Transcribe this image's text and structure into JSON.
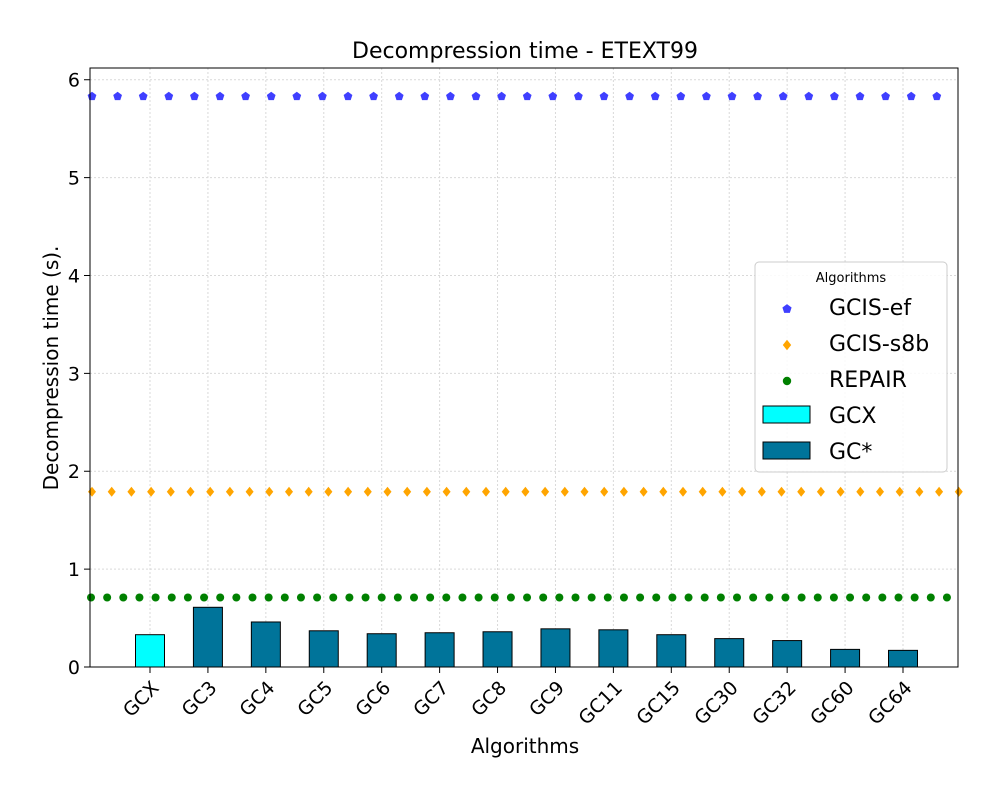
{
  "chart_data": {
    "type": "bar",
    "title": "Decompression time -  ETEXT99",
    "xlabel": "Algorithms",
    "ylabel": "Decompression time (s).",
    "ylim": [
      0,
      6.12
    ],
    "yticks": [
      0,
      1,
      2,
      3,
      4,
      5,
      6
    ],
    "grid": true,
    "categories": [
      "GCX",
      "GC3",
      "GC4",
      "GC5",
      "GC6",
      "GC7",
      "GC8",
      "GC9",
      "GC11",
      "GC15",
      "GC30",
      "GC32",
      "GC60",
      "GC64"
    ],
    "series": [
      {
        "name": "GCX",
        "kind": "bar",
        "color": "#00FFFF",
        "values": [
          0.33,
          null,
          null,
          null,
          null,
          null,
          null,
          null,
          null,
          null,
          null,
          null,
          null,
          null
        ]
      },
      {
        "name": "GC*",
        "kind": "bar",
        "color": "#00749A",
        "values": [
          null,
          0.61,
          0.46,
          0.37,
          0.34,
          0.35,
          0.36,
          0.39,
          0.38,
          0.33,
          0.29,
          0.27,
          0.18,
          0.17
        ]
      },
      {
        "name": "GCIS-ef",
        "kind": "reference-line",
        "marker": "pentagon",
        "color": "#3F3FFF",
        "value": 5.83
      },
      {
        "name": "GCIS-s8b",
        "kind": "reference-line",
        "marker": "diamond",
        "color": "#FFA500",
        "value": 1.79
      },
      {
        "name": "REPAIR",
        "kind": "reference-line",
        "marker": "circle",
        "color": "#008000",
        "value": 0.71
      }
    ],
    "legend": {
      "title": "Algorithms",
      "placement": "right",
      "entries": [
        "GCIS-ef",
        "GCIS-s8b",
        "REPAIR",
        "GCX",
        "GC*"
      ]
    }
  }
}
